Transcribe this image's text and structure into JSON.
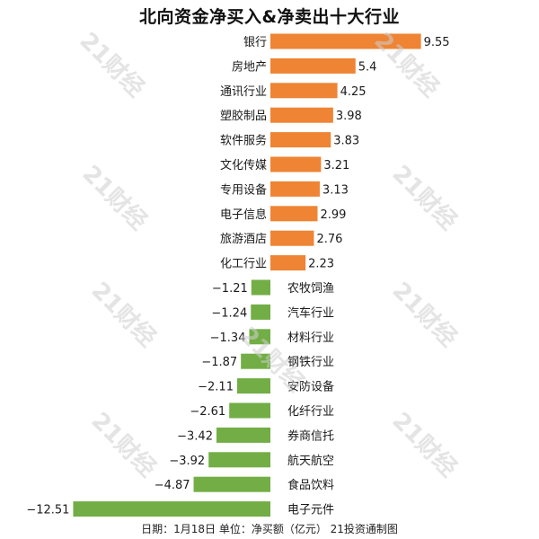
{
  "chart_data": {
    "type": "bar",
    "orientation": "horizontal",
    "title": "北向资金净买入&净卖出十大行业",
    "categories": [
      "银行",
      "房地产",
      "通讯行业",
      "塑胶制品",
      "软件服务",
      "文化传媒",
      "专用设备",
      "电子信息",
      "旅游酒店",
      "化工行业",
      "农牧饲渔",
      "汽车行业",
      "材料行业",
      "钢铁行业",
      "安防设备",
      "化纤行业",
      "券商信托",
      "航天航空",
      "食品饮料",
      "电子元件"
    ],
    "values": [
      9.55,
      5.4,
      4.25,
      3.98,
      3.83,
      3.21,
      3.13,
      2.99,
      2.76,
      2.23,
      -1.21,
      -1.24,
      -1.34,
      -1.87,
      -2.11,
      -2.61,
      -3.42,
      -3.92,
      -4.87,
      -12.51
    ],
    "value_labels": [
      "9.55",
      "5.4",
      "4.25",
      "3.98",
      "3.83",
      "3.21",
      "3.13",
      "2.99",
      "2.76",
      "2.23",
      "−1.21",
      "−1.24",
      "−1.34",
      "−1.87",
      "−2.11",
      "−2.61",
      "−3.42",
      "−3.92",
      "−4.87",
      "−12.51"
    ],
    "colors": {
      "positive": "#EE8434",
      "negative": "#72AE45"
    },
    "grid": false,
    "legend": "none"
  },
  "footer": "日期：1月18日 单位：净买额（亿元） 21投资通制图",
  "watermark": "21财经"
}
